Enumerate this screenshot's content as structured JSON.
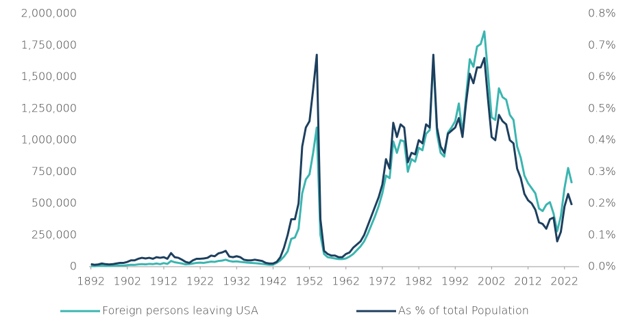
{
  "chart_data": {
    "type": "line",
    "x": [
      1892,
      1893,
      1894,
      1895,
      1896,
      1897,
      1898,
      1899,
      1900,
      1901,
      1902,
      1903,
      1904,
      1905,
      1906,
      1907,
      1908,
      1909,
      1910,
      1911,
      1912,
      1913,
      1914,
      1915,
      1916,
      1917,
      1918,
      1919,
      1920,
      1921,
      1922,
      1923,
      1924,
      1925,
      1926,
      1927,
      1928,
      1929,
      1930,
      1931,
      1932,
      1933,
      1934,
      1935,
      1936,
      1937,
      1938,
      1939,
      1940,
      1941,
      1942,
      1943,
      1944,
      1945,
      1946,
      1947,
      1948,
      1949,
      1950,
      1951,
      1952,
      1953,
      1954,
      1955,
      1956,
      1957,
      1958,
      1959,
      1960,
      1961,
      1962,
      1963,
      1964,
      1965,
      1966,
      1967,
      1968,
      1969,
      1970,
      1971,
      1972,
      1973,
      1974,
      1975,
      1976,
      1977,
      1978,
      1979,
      1980,
      1981,
      1982,
      1983,
      1984,
      1985,
      1986,
      1987,
      1988,
      1989,
      1990,
      1991,
      1992,
      1993,
      1994,
      1995,
      1996,
      1997,
      1998,
      1999,
      2000,
      2001,
      2002,
      2003,
      2004,
      2005,
      2006,
      2007,
      2008,
      2009,
      2010,
      2011,
      2012,
      2013,
      2014,
      2015,
      2016,
      2017,
      2018,
      2019,
      2020,
      2021,
      2022,
      2023,
      2024
    ],
    "series": [
      {
        "name": "Foreign persons leaving USA",
        "color": "#3bb5b0",
        "values": [
          5000,
          4000,
          6000,
          8000,
          5000,
          6000,
          7000,
          8000,
          10000,
          9000,
          12000,
          15000,
          14000,
          18000,
          20000,
          18000,
          22000,
          20000,
          25000,
          20000,
          28000,
          22000,
          45000,
          35000,
          30000,
          25000,
          18000,
          20000,
          25000,
          30000,
          32000,
          30000,
          35000,
          40000,
          38000,
          45000,
          48000,
          55000,
          45000,
          40000,
          42000,
          38000,
          35000,
          32000,
          30000,
          28000,
          25000,
          22000,
          18000,
          15000,
          15000,
          30000,
          50000,
          80000,
          120000,
          220000,
          230000,
          300000,
          580000,
          690000,
          730000,
          900000,
          1100000,
          250000,
          100000,
          75000,
          70000,
          65000,
          60000,
          60000,
          65000,
          80000,
          100000,
          130000,
          160000,
          200000,
          260000,
          330000,
          400000,
          480000,
          580000,
          720000,
          700000,
          990000,
          900000,
          1000000,
          990000,
          750000,
          850000,
          830000,
          940000,
          920000,
          1050000,
          1080000,
          1650000,
          1050000,
          900000,
          870000,
          1060000,
          1100000,
          1150000,
          1290000,
          1050000,
          1350000,
          1640000,
          1580000,
          1740000,
          1760000,
          1860000,
          1530000,
          1180000,
          1160000,
          1410000,
          1340000,
          1320000,
          1200000,
          1160000,
          950000,
          860000,
          720000,
          660000,
          620000,
          580000,
          460000,
          440000,
          490000,
          510000,
          420000,
          280000,
          400000,
          620000,
          780000,
          660000
        ]
      },
      {
        "name": "As % of total Population",
        "color": "#1d3f5e",
        "axis": "y2",
        "values": [
          0.008,
          0.006,
          0.007,
          0.01,
          0.008,
          0.007,
          0.008,
          0.01,
          0.012,
          0.012,
          0.015,
          0.02,
          0.02,
          0.025,
          0.028,
          0.026,
          0.028,
          0.025,
          0.03,
          0.028,
          0.03,
          0.025,
          0.043,
          0.03,
          0.028,
          0.022,
          0.015,
          0.012,
          0.02,
          0.025,
          0.025,
          0.026,
          0.028,
          0.035,
          0.033,
          0.042,
          0.045,
          0.05,
          0.032,
          0.03,
          0.033,
          0.03,
          0.022,
          0.02,
          0.02,
          0.022,
          0.02,
          0.018,
          0.012,
          0.01,
          0.01,
          0.015,
          0.03,
          0.06,
          0.1,
          0.15,
          0.15,
          0.2,
          0.38,
          0.44,
          0.46,
          0.56,
          0.67,
          0.15,
          0.05,
          0.04,
          0.035,
          0.035,
          0.03,
          0.03,
          0.04,
          0.045,
          0.06,
          0.07,
          0.08,
          0.1,
          0.13,
          0.16,
          0.19,
          0.22,
          0.26,
          0.34,
          0.31,
          0.455,
          0.41,
          0.45,
          0.44,
          0.33,
          0.36,
          0.355,
          0.4,
          0.39,
          0.45,
          0.44,
          0.67,
          0.44,
          0.38,
          0.36,
          0.42,
          0.43,
          0.44,
          0.47,
          0.41,
          0.52,
          0.61,
          0.58,
          0.63,
          0.63,
          0.66,
          0.53,
          0.41,
          0.4,
          0.48,
          0.46,
          0.45,
          0.4,
          0.39,
          0.31,
          0.28,
          0.23,
          0.21,
          0.2,
          0.18,
          0.14,
          0.135,
          0.12,
          0.15,
          0.155,
          0.08,
          0.11,
          0.19,
          0.23,
          0.195
        ]
      }
    ],
    "xlim": [
      1891.5,
      2026
    ],
    "xticks": [
      1892,
      1902,
      1912,
      1922,
      1932,
      1942,
      1952,
      1962,
      1972,
      1982,
      1992,
      2002,
      2012,
      2022
    ],
    "ylim": [
      0,
      2000000
    ],
    "yticks": [
      0,
      {
        "value": 250000,
        "label": "250,000"
      },
      {
        "value": 500000,
        "label": "500,000"
      },
      {
        "value": 750000,
        "label": "750,000"
      },
      {
        "value": 1000000,
        "label": "1,000,000"
      },
      {
        "value": 1250000,
        "label": "1,250,000"
      },
      {
        "value": 1500000,
        "label": "1,500,000"
      },
      {
        "value": 1750000,
        "label": "1,750,000"
      },
      {
        "value": 2000000,
        "label": "2,000,000"
      }
    ],
    "y2lim": [
      0,
      0.8
    ],
    "y2ticks": [
      {
        "value": 0,
        "label": "0.0%"
      },
      {
        "value": 0.1,
        "label": "0.1%"
      },
      {
        "value": 0.2,
        "label": "0.2%"
      },
      {
        "value": 0.3,
        "label": "0.3%"
      },
      {
        "value": 0.4,
        "label": "0.4%"
      },
      {
        "value": 0.5,
        "label": "0.5%"
      },
      {
        "value": 0.6,
        "label": "0.6%"
      },
      {
        "value": 0.7,
        "label": "0.7%"
      },
      {
        "value": 0.8,
        "label": "0.8%"
      }
    ],
    "grid": false
  }
}
